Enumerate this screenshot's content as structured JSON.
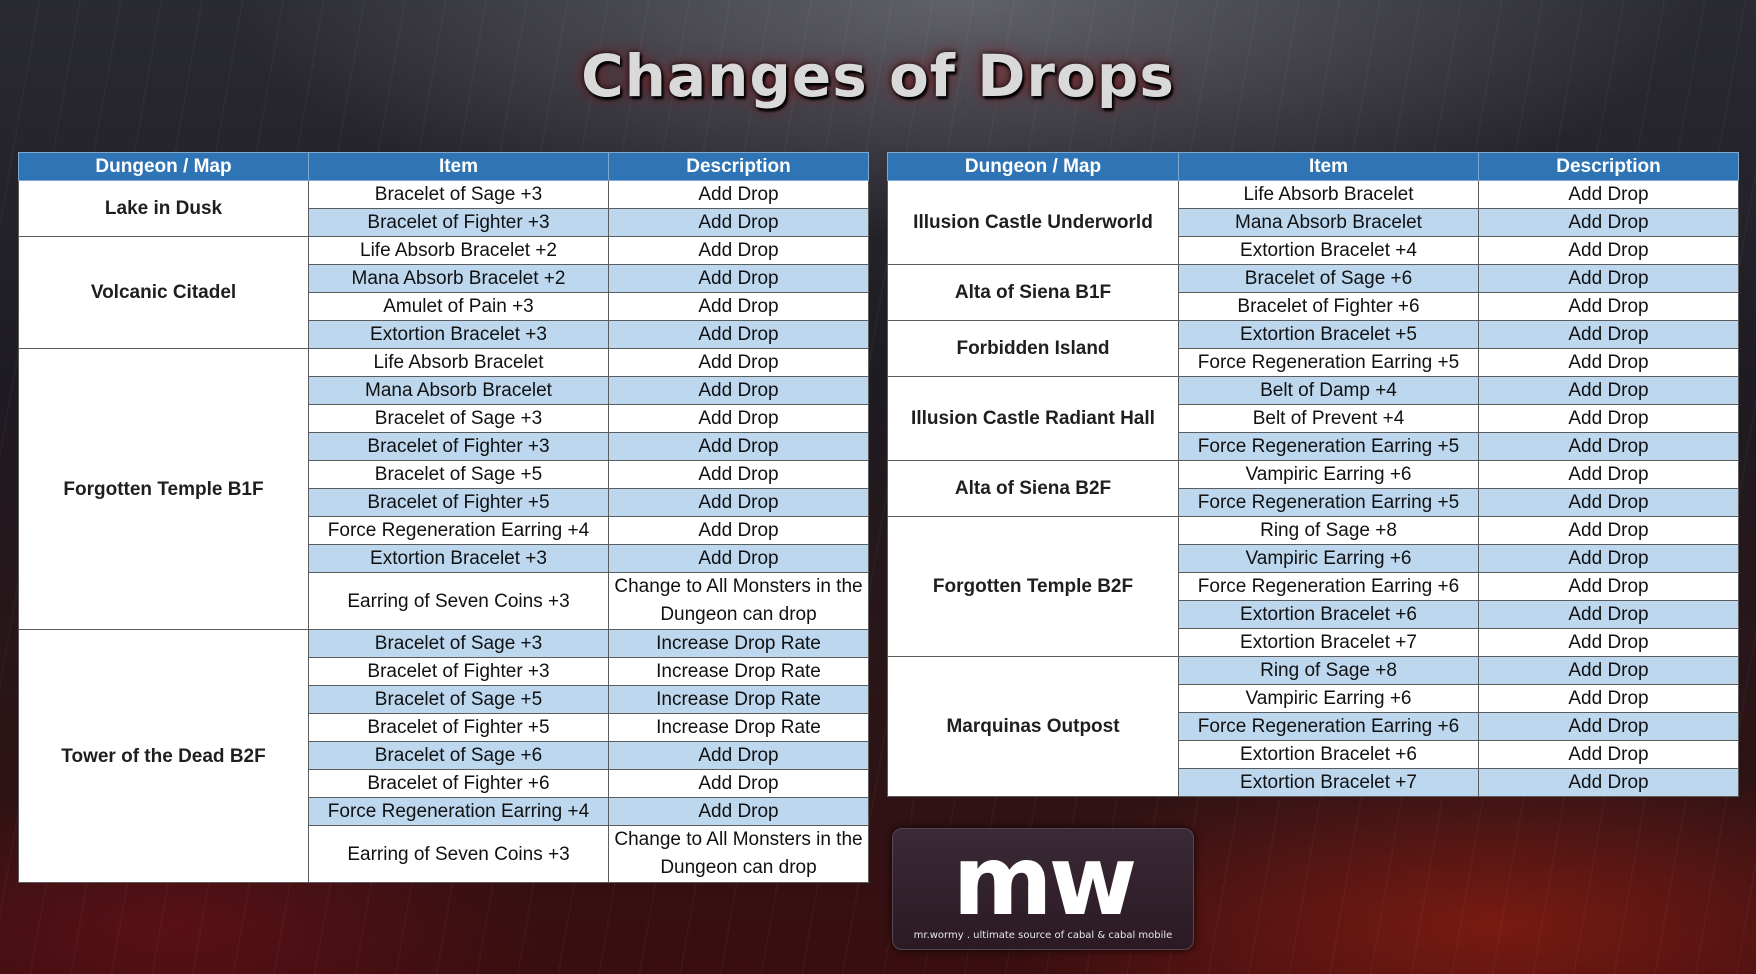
{
  "title": "Changes of Drops",
  "columns": {
    "dungeon": "Dungeon / Map",
    "item": "Item",
    "description": "Description"
  },
  "left": {
    "groups": [
      {
        "dungeon": "Lake in Dusk",
        "rows": [
          {
            "item": "Bracelet of Sage +3",
            "desc": "Add Drop"
          },
          {
            "item": "Bracelet of Fighter +3",
            "desc": "Add Drop"
          }
        ]
      },
      {
        "dungeon": "Volcanic Citadel",
        "rows": [
          {
            "item": "Life Absorb Bracelet +2",
            "desc": "Add Drop"
          },
          {
            "item": "Mana Absorb Bracelet +2",
            "desc": "Add Drop"
          },
          {
            "item": "Amulet of Pain +3",
            "desc": "Add Drop"
          },
          {
            "item": "Extortion Bracelet +3",
            "desc": "Add Drop"
          }
        ]
      },
      {
        "dungeon": "Forgotten Temple B1F",
        "rows": [
          {
            "item": "Life Absorb Bracelet",
            "desc": "Add Drop"
          },
          {
            "item": "Mana Absorb Bracelet",
            "desc": "Add Drop"
          },
          {
            "item": "Bracelet of Sage +3",
            "desc": "Add Drop"
          },
          {
            "item": "Bracelet of Fighter +3",
            "desc": "Add Drop"
          },
          {
            "item": "Bracelet of Sage +5",
            "desc": "Add Drop"
          },
          {
            "item": "Bracelet of Fighter +5",
            "desc": "Add Drop"
          },
          {
            "item": "Force Regeneration Earring +4",
            "desc": "Add Drop"
          },
          {
            "item": "Extortion Bracelet +3",
            "desc": "Add Drop"
          },
          {
            "item": "Earring of Seven Coins +3",
            "desc": "Change to All Monsters in the Dungeon can drop",
            "tall": true
          }
        ]
      },
      {
        "dungeon": "Tower of the Dead B2F",
        "rows": [
          {
            "item": "Bracelet of Sage +3",
            "desc": "Increase Drop Rate"
          },
          {
            "item": "Bracelet of Fighter +3",
            "desc": "Increase Drop Rate"
          },
          {
            "item": "Bracelet of Sage +5",
            "desc": "Increase Drop Rate"
          },
          {
            "item": "Bracelet of Fighter +5",
            "desc": "Increase Drop Rate"
          },
          {
            "item": "Bracelet of Sage +6",
            "desc": "Add Drop"
          },
          {
            "item": "Bracelet of Fighter +6",
            "desc": "Add Drop"
          },
          {
            "item": "Force Regeneration Earring +4",
            "desc": "Add Drop"
          },
          {
            "item": "Earring of Seven Coins +3",
            "desc": "Change to All Monsters in the Dungeon can drop",
            "tall": true
          }
        ]
      }
    ]
  },
  "right": {
    "groups": [
      {
        "dungeon": "Illusion Castle Underworld",
        "rows": [
          {
            "item": "Life Absorb Bracelet",
            "desc": "Add Drop"
          },
          {
            "item": "Mana Absorb Bracelet",
            "desc": "Add Drop"
          },
          {
            "item": "Extortion Bracelet +4",
            "desc": "Add Drop"
          }
        ]
      },
      {
        "dungeon": "Alta of Siena B1F",
        "rows": [
          {
            "item": "Bracelet of Sage +6",
            "desc": "Add Drop"
          },
          {
            "item": "Bracelet of Fighter +6",
            "desc": "Add Drop"
          }
        ]
      },
      {
        "dungeon": "Forbidden Island",
        "rows": [
          {
            "item": "Extortion Bracelet +5",
            "desc": "Add Drop"
          },
          {
            "item": "Force Regeneration Earring +5",
            "desc": "Add Drop"
          }
        ]
      },
      {
        "dungeon": "Illusion Castle Radiant Hall",
        "rows": [
          {
            "item": "Belt of Damp +4",
            "desc": "Add Drop"
          },
          {
            "item": "Belt of Prevent +4",
            "desc": "Add Drop"
          },
          {
            "item": "Force Regeneration Earring +5",
            "desc": "Add Drop"
          }
        ]
      },
      {
        "dungeon": "Alta of Siena B2F",
        "rows": [
          {
            "item": "Vampiric Earring +6",
            "desc": "Add Drop"
          },
          {
            "item": "Force Regeneration Earring +5",
            "desc": "Add Drop"
          }
        ]
      },
      {
        "dungeon": "Forgotten Temple B2F",
        "rows": [
          {
            "item": "Ring of Sage +8",
            "desc": "Add Drop"
          },
          {
            "item": "Vampiric Earring +6",
            "desc": "Add Drop"
          },
          {
            "item": "Force Regeneration Earring +6",
            "desc": "Add Drop"
          },
          {
            "item": "Extortion Bracelet +6",
            "desc": "Add Drop"
          },
          {
            "item": "Extortion Bracelet +7",
            "desc": "Add Drop"
          }
        ]
      },
      {
        "dungeon": "Marquinas Outpost",
        "rows": [
          {
            "item": "Ring of Sage +8",
            "desc": "Add Drop"
          },
          {
            "item": "Vampiric Earring +6",
            "desc": "Add Drop"
          },
          {
            "item": "Force Regeneration Earring +6",
            "desc": "Add Drop"
          },
          {
            "item": "Extortion Bracelet +6",
            "desc": "Add Drop"
          },
          {
            "item": "Extortion Bracelet +7",
            "desc": "Add Drop"
          }
        ]
      }
    ]
  },
  "logo": {
    "mark": "mw",
    "tagline": "mr.wormy . ultimate source of cabal & cabal mobile"
  }
}
